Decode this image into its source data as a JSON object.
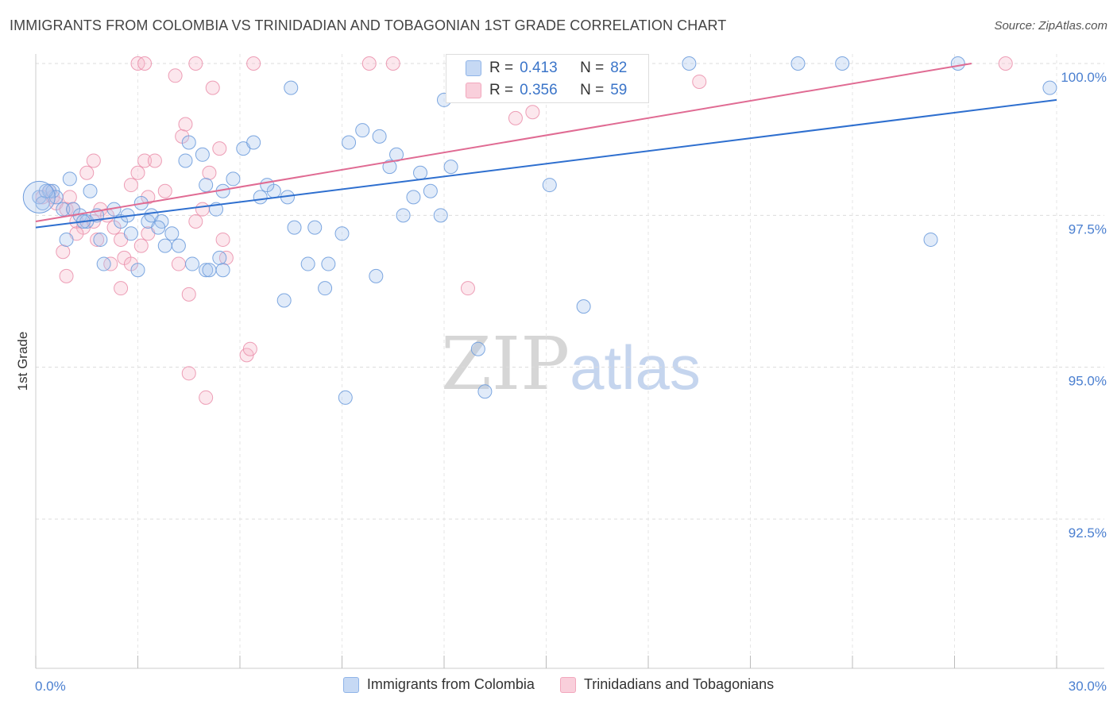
{
  "title": "IMMIGRANTS FROM COLOMBIA VS TRINIDADIAN AND TOBAGONIAN 1ST GRADE CORRELATION CHART",
  "source": "Source: ZipAtlas.com",
  "watermark": {
    "zip": "ZIP",
    "atlas": "atlas"
  },
  "colors": {
    "blue": "#8fb4e8",
    "blue_line": "#2e6fcf",
    "pink": "#f2a7bd",
    "pink_line": "#e06b93"
  },
  "stats": {
    "blue": {
      "r_label": "R =",
      "r": "0.413",
      "n_label": "N =",
      "n": "82"
    },
    "pink": {
      "r_label": "R =",
      "r": "0.356",
      "n_label": "N =",
      "n": "59"
    }
  },
  "legend": {
    "blue": "Immigrants from Colombia",
    "pink": "Trinidadians and Tobagonians"
  },
  "chart_data": {
    "type": "scatter",
    "xlabel": "",
    "ylabel": "1st Grade",
    "xlim": [
      0,
      30
    ],
    "ylim": [
      90.5,
      100.5
    ],
    "x_tick_labels": {
      "left": "0.0%",
      "right": "30.0%"
    },
    "y_ticks": [
      {
        "value": 100,
        "label": "100.0%"
      },
      {
        "value": 97.5,
        "label": "97.5%"
      },
      {
        "value": 95,
        "label": "95.0%"
      },
      {
        "value": 92.5,
        "label": "92.5%"
      }
    ],
    "series": [
      {
        "name": "Immigrants from Colombia",
        "color": "#8fb4e8",
        "trend": [
          [
            0,
            97.3
          ],
          [
            30,
            99.4
          ]
        ],
        "points": [
          [
            0.1,
            97.8
          ],
          [
            0.2,
            97.7
          ],
          [
            0.4,
            97.9
          ],
          [
            0.5,
            97.9
          ],
          [
            0.6,
            97.8
          ],
          [
            0.8,
            97.6
          ],
          [
            1.1,
            97.6
          ],
          [
            1.3,
            97.5
          ],
          [
            1.5,
            97.4
          ],
          [
            0.9,
            97.1
          ],
          [
            1.4,
            97.4
          ],
          [
            1.8,
            97.5
          ],
          [
            1.9,
            97.1
          ],
          [
            2.3,
            97.6
          ],
          [
            2.5,
            97.4
          ],
          [
            2.7,
            97.5
          ],
          [
            3.1,
            97.7
          ],
          [
            3.3,
            97.4
          ],
          [
            3.4,
            97.5
          ],
          [
            3.7,
            97.4
          ],
          [
            3.8,
            97.0
          ],
          [
            4.0,
            97.2
          ],
          [
            4.2,
            97.0
          ],
          [
            4.6,
            96.7
          ],
          [
            5.0,
            96.6
          ],
          [
            5.1,
            96.6
          ],
          [
            5.4,
            96.8
          ],
          [
            5.5,
            96.6
          ],
          [
            5.3,
            97.6
          ],
          [
            5.0,
            98.0
          ],
          [
            5.5,
            97.9
          ],
          [
            4.4,
            98.4
          ],
          [
            4.5,
            98.7
          ],
          [
            5.8,
            98.1
          ],
          [
            6.1,
            98.6
          ],
          [
            6.4,
            98.7
          ],
          [
            7.0,
            97.9
          ],
          [
            7.4,
            97.8
          ],
          [
            7.6,
            97.3
          ],
          [
            8.0,
            96.7
          ],
          [
            8.2,
            97.3
          ],
          [
            8.6,
            96.7
          ],
          [
            9.0,
            97.2
          ],
          [
            9.2,
            98.7
          ],
          [
            9.6,
            98.9
          ],
          [
            10.0,
            96.5
          ],
          [
            10.1,
            98.8
          ],
          [
            10.4,
            98.3
          ],
          [
            10.6,
            98.5
          ],
          [
            10.8,
            97.5
          ],
          [
            11.1,
            97.8
          ],
          [
            11.3,
            98.2
          ],
          [
            11.6,
            97.9
          ],
          [
            11.9,
            97.5
          ],
          [
            12.2,
            98.3
          ],
          [
            13.0,
            95.3
          ],
          [
            13.2,
            94.6
          ],
          [
            12.0,
            99.4
          ],
          [
            8.5,
            96.3
          ],
          [
            7.3,
            96.1
          ],
          [
            7.5,
            99.6
          ],
          [
            9.1,
            94.5
          ],
          [
            12.4,
            99.6
          ],
          [
            16.1,
            96.0
          ],
          [
            17.6,
            99.6
          ],
          [
            22.4,
            100.0
          ],
          [
            15.1,
            98.0
          ],
          [
            26.3,
            97.1
          ],
          [
            29.8,
            99.6
          ],
          [
            19.2,
            100.0
          ],
          [
            23.7,
            100.0
          ],
          [
            27.1,
            100.0
          ],
          [
            6.8,
            98.0
          ],
          [
            2.0,
            96.7
          ],
          [
            3.6,
            97.3
          ],
          [
            1.0,
            98.1
          ],
          [
            2.8,
            97.2
          ],
          [
            3.0,
            96.6
          ],
          [
            4.9,
            98.5
          ],
          [
            6.6,
            97.8
          ],
          [
            1.6,
            97.9
          ],
          [
            0.3,
            97.9
          ]
        ]
      },
      {
        "name": "Trinidadians and Tobagonians",
        "color": "#f2a7bd",
        "trend": [
          [
            0,
            97.4
          ],
          [
            27.5,
            100.0
          ]
        ],
        "points": [
          [
            0.2,
            97.8
          ],
          [
            0.4,
            97.9
          ],
          [
            0.5,
            97.8
          ],
          [
            0.6,
            97.7
          ],
          [
            0.9,
            97.6
          ],
          [
            1.0,
            97.8
          ],
          [
            1.1,
            97.6
          ],
          [
            1.2,
            97.4
          ],
          [
            1.4,
            97.3
          ],
          [
            1.7,
            97.4
          ],
          [
            1.9,
            97.6
          ],
          [
            2.1,
            97.5
          ],
          [
            2.3,
            97.3
          ],
          [
            2.5,
            97.1
          ],
          [
            2.6,
            96.8
          ],
          [
            2.8,
            96.7
          ],
          [
            3.1,
            97.0
          ],
          [
            3.3,
            97.2
          ],
          [
            0.8,
            96.9
          ],
          [
            0.9,
            96.5
          ],
          [
            1.2,
            97.2
          ],
          [
            1.8,
            97.1
          ],
          [
            2.2,
            96.7
          ],
          [
            2.5,
            96.3
          ],
          [
            2.8,
            98.0
          ],
          [
            3.0,
            98.2
          ],
          [
            3.2,
            98.4
          ],
          [
            3.5,
            98.4
          ],
          [
            3.3,
            97.8
          ],
          [
            1.7,
            98.4
          ],
          [
            1.5,
            98.2
          ],
          [
            3.8,
            97.9
          ],
          [
            4.2,
            96.7
          ],
          [
            4.5,
            96.2
          ],
          [
            4.3,
            98.8
          ],
          [
            4.7,
            97.4
          ],
          [
            4.9,
            97.6
          ],
          [
            5.1,
            98.2
          ],
          [
            5.4,
            98.6
          ],
          [
            5.6,
            96.8
          ],
          [
            4.4,
            99.0
          ],
          [
            4.1,
            99.8
          ],
          [
            5.2,
            99.6
          ],
          [
            3.0,
            100.0
          ],
          [
            3.2,
            100.0
          ],
          [
            4.7,
            100.0
          ],
          [
            6.4,
            100.0
          ],
          [
            9.8,
            100.0
          ],
          [
            10.5,
            100.0
          ],
          [
            14.1,
            99.1
          ],
          [
            14.6,
            99.2
          ],
          [
            19.5,
            99.7
          ],
          [
            12.7,
            96.3
          ],
          [
            6.2,
            95.2
          ],
          [
            6.3,
            95.3
          ],
          [
            4.5,
            94.9
          ],
          [
            5.0,
            94.5
          ],
          [
            28.5,
            100.0
          ],
          [
            5.5,
            97.1
          ]
        ]
      }
    ]
  }
}
